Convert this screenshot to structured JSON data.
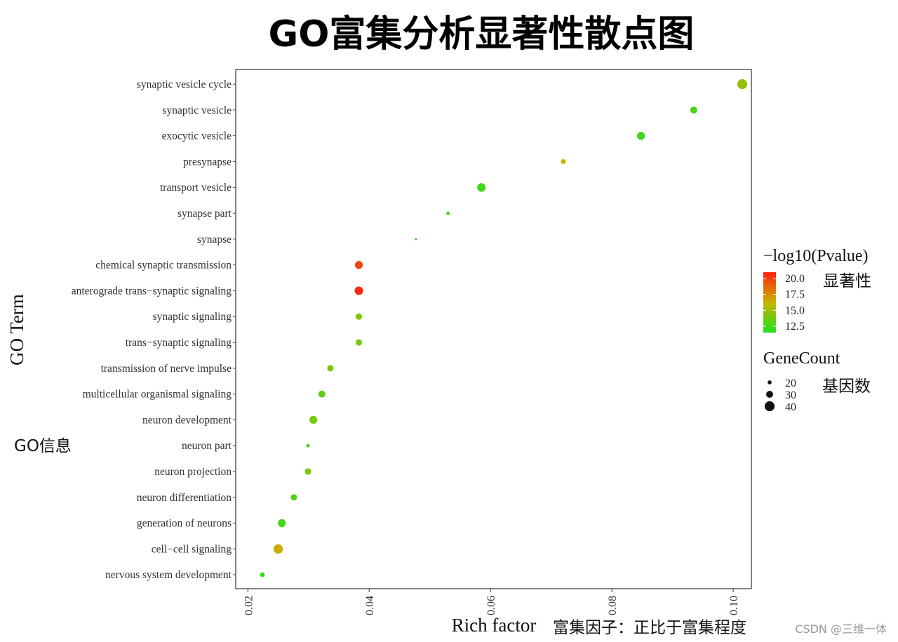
{
  "chart_data": {
    "type": "scatter",
    "title": "GO富集分析显著性散点图",
    "xlabel": "Rich factor",
    "ylabel": "GO Term",
    "xlim": [
      0.018,
      0.103
    ],
    "x_ticks": [
      0.02,
      0.04,
      0.06,
      0.08,
      0.1
    ],
    "x_tick_labels": [
      "0.02",
      "0.04",
      "0.06",
      "0.08",
      "0.10"
    ],
    "grid": false,
    "points": [
      {
        "term": "synaptic vesicle cycle",
        "x": 0.1015,
        "pvalue": 14.8,
        "count": 40
      },
      {
        "term": "synaptic vesicle",
        "x": 0.0935,
        "pvalue": 12.6,
        "count": 30
      },
      {
        "term": "exocytic vesicle",
        "x": 0.0848,
        "pvalue": 12.3,
        "count": 33
      },
      {
        "term": "presynapse",
        "x": 0.072,
        "pvalue": 16.0,
        "count": 23
      },
      {
        "term": "transport vesicle",
        "x": 0.0585,
        "pvalue": 12.4,
        "count": 35
      },
      {
        "term": "synapse part",
        "x": 0.053,
        "pvalue": 12.6,
        "count": 18
      },
      {
        "term": "synapse",
        "x": 0.0477,
        "pvalue": 12.2,
        "count": 14
      },
      {
        "term": "chemical synaptic transmission",
        "x": 0.0383,
        "pvalue": 19.8,
        "count": 33
      },
      {
        "term": "anterograde trans-synaptic signaling",
        "x": 0.0383,
        "pvalue": 20.8,
        "count": 35
      },
      {
        "term": "synaptic signaling",
        "x": 0.0383,
        "pvalue": 14.3,
        "count": 28
      },
      {
        "term": "trans-synaptic signaling",
        "x": 0.0383,
        "pvalue": 14.0,
        "count": 28
      },
      {
        "term": "transmission of nerve impulse",
        "x": 0.0336,
        "pvalue": 14.0,
        "count": 28
      },
      {
        "term": "multicellular organismal signaling",
        "x": 0.0322,
        "pvalue": 13.4,
        "count": 30
      },
      {
        "term": "neuron development",
        "x": 0.0308,
        "pvalue": 14.0,
        "count": 33
      },
      {
        "term": "neuron part",
        "x": 0.0299,
        "pvalue": 12.6,
        "count": 18
      },
      {
        "term": "neuron projection",
        "x": 0.0299,
        "pvalue": 14.0,
        "count": 28
      },
      {
        "term": "neuron differentiation",
        "x": 0.0276,
        "pvalue": 12.9,
        "count": 28
      },
      {
        "term": "generation of neurons",
        "x": 0.0256,
        "pvalue": 12.6,
        "count": 33
      },
      {
        "term": "cell-cell signaling",
        "x": 0.025,
        "pvalue": 16.5,
        "count": 38
      },
      {
        "term": "nervous system development",
        "x": 0.0224,
        "pvalue": 12.2,
        "count": 22
      }
    ],
    "color_legend": {
      "title": "−log10(Pvalue)",
      "ticks": [
        20.0,
        17.5,
        15.0,
        12.5
      ],
      "tick_labels": [
        "20.0",
        "17.5",
        "15.0",
        "12.5"
      ],
      "range": [
        11.5,
        21.0
      ],
      "low_color": "#1ee01e",
      "mid_color": "#c8b400",
      "high_color": "#ff2010"
    },
    "size_legend": {
      "title": "GeneCount",
      "values": [
        20,
        30,
        40
      ],
      "value_labels": [
        "20",
        "30",
        "40"
      ]
    },
    "legend_position": "right"
  },
  "annotations": {
    "color_legend_cn": "显著性",
    "size_legend_cn": "基因数",
    "y_axis_cn": "GO信息",
    "x_axis_cn": "富集因子：正比于富集程度"
  },
  "watermark": "CSDN @三维一体"
}
